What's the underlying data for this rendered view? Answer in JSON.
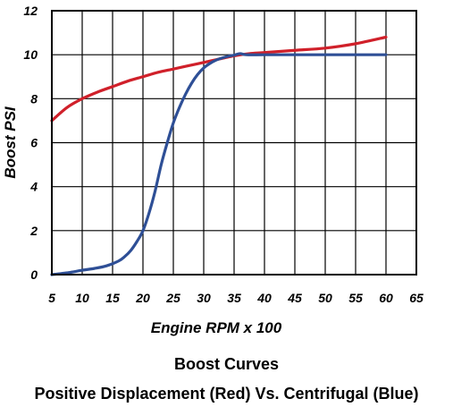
{
  "chart_data": {
    "type": "line",
    "title": "Boost Curves",
    "subtitle": "Positive Displacement (Red) Vs. Centrifugal (Blue)",
    "xlabel": "Engine RPM x 100",
    "ylabel": "Boost PSI",
    "xlim": [
      5,
      65
    ],
    "ylim": [
      0,
      12
    ],
    "xticks": [
      5,
      10,
      15,
      20,
      25,
      30,
      35,
      40,
      45,
      50,
      55,
      60,
      65
    ],
    "yticks": [
      0,
      2,
      4,
      6,
      8,
      10,
      12
    ],
    "grid": true,
    "legend": "none",
    "series": [
      {
        "color": "#d0202a",
        "x": [
          5,
          7.5,
          10,
          12.5,
          15,
          17.5,
          20,
          22.5,
          25,
          27.5,
          30,
          32.5,
          35,
          37.5,
          40,
          45,
          50,
          55,
          60
        ],
        "y": [
          7.0,
          7.6,
          8.0,
          8.3,
          8.55,
          8.8,
          9.0,
          9.2,
          9.35,
          9.5,
          9.65,
          9.8,
          9.95,
          10.05,
          10.1,
          10.2,
          10.3,
          10.5,
          10.8
        ]
      },
      {
        "color": "#2e4f96",
        "x": [
          5,
          8,
          10,
          12,
          14,
          16,
          17,
          18,
          19,
          20,
          21,
          22,
          23,
          24,
          25,
          26,
          27,
          28,
          29,
          30,
          31,
          32,
          33,
          34,
          35,
          36,
          37,
          40,
          45,
          50,
          55,
          60
        ],
        "y": [
          0,
          0.1,
          0.2,
          0.28,
          0.4,
          0.62,
          0.82,
          1.1,
          1.5,
          2.0,
          2.8,
          3.8,
          5.0,
          6.0,
          6.9,
          7.6,
          8.2,
          8.7,
          9.1,
          9.4,
          9.6,
          9.75,
          9.85,
          9.93,
          9.98,
          10.05,
          10.0,
          10.0,
          10.0,
          10.0,
          10.0,
          10.0
        ]
      }
    ]
  }
}
